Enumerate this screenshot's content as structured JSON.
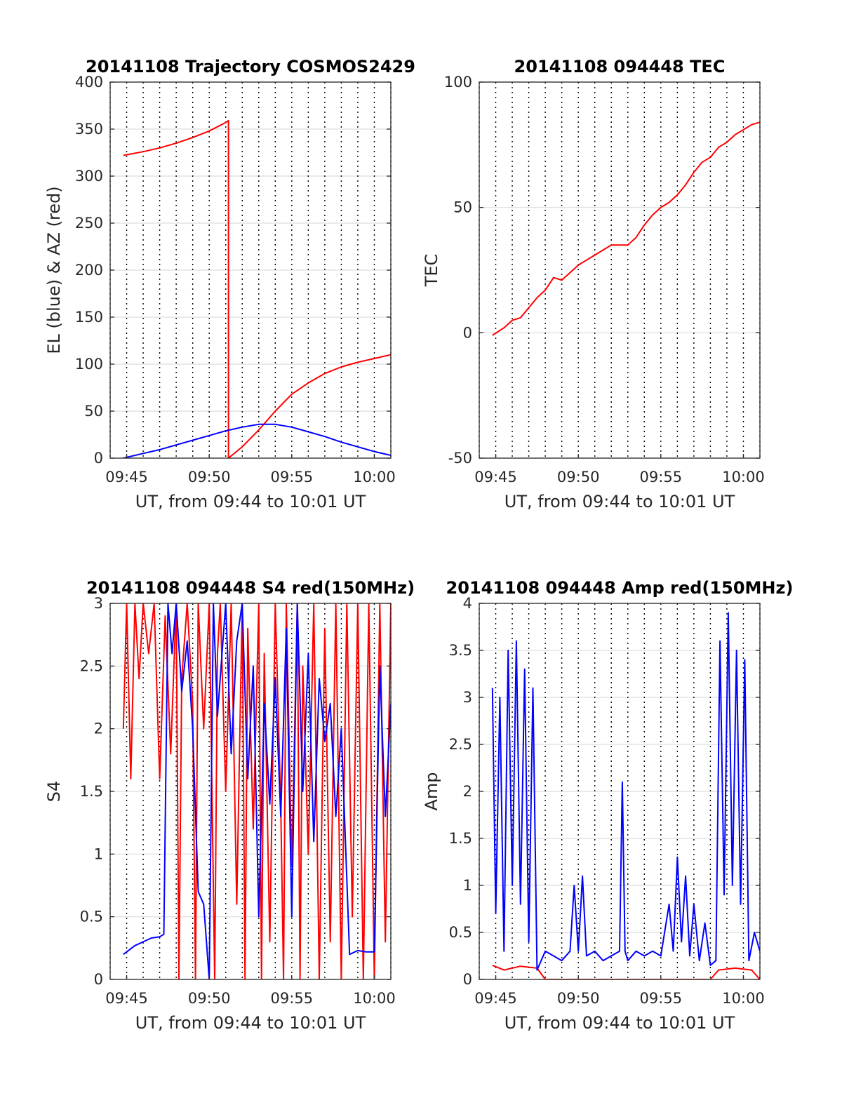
{
  "chart_data": [
    {
      "type": "line",
      "title": "20141108 Trajectory COSMOS2429",
      "xlabel": "UT, from 09:44 to 10:01 UT",
      "ylabel": "EL (blue) & AZ (red)",
      "xlim": [
        "09:44",
        "10:01"
      ],
      "ylim": [
        0,
        400
      ],
      "yticks": [
        0,
        50,
        100,
        150,
        200,
        250,
        300,
        350,
        400
      ],
      "xtick_labels": [
        "09:45",
        "09:50",
        "09:55",
        "10:00"
      ],
      "grid": true,
      "series": [
        {
          "color": "#ff0000",
          "x": [
            "09:44:48",
            "09:46:00",
            "09:47:00",
            "09:48:00",
            "09:49:00",
            "09:50:00",
            "09:51:00",
            "09:51:10",
            "09:51:10",
            "09:52:00",
            "09:53:00",
            "09:54:00",
            "09:55:00",
            "09:56:00",
            "09:57:00",
            "09:58:00",
            "09:59:00",
            "10:00:00",
            "10:01:00"
          ],
          "y": [
            322,
            326,
            330,
            335,
            341,
            348,
            357,
            359,
            0,
            12,
            30,
            50,
            68,
            80,
            90,
            97,
            102,
            106,
            110
          ]
        },
        {
          "color": "#0000ff",
          "x": [
            "09:44:48",
            "09:46:00",
            "09:47:00",
            "09:48:00",
            "09:49:00",
            "09:50:00",
            "09:51:00",
            "09:52:00",
            "09:53:00",
            "09:54:00",
            "09:55:00",
            "09:56:00",
            "09:57:00",
            "09:58:00",
            "09:59:00",
            "10:00:00",
            "10:01:00"
          ],
          "y": [
            0,
            5,
            9,
            14,
            19,
            24,
            29,
            33,
            36,
            36,
            33,
            28,
            23,
            17,
            12,
            7,
            3
          ]
        }
      ]
    },
    {
      "type": "line",
      "title": "20141108 094448 TEC",
      "xlabel": "UT, from 09:44 to 10:01 UT",
      "ylabel": "TEC",
      "xlim": [
        "09:44",
        "10:01"
      ],
      "ylim": [
        -50,
        100
      ],
      "yticks": [
        -50,
        0,
        50,
        100
      ],
      "xtick_labels": [
        "09:45",
        "09:50",
        "09:55",
        "10:00"
      ],
      "grid": true,
      "series": [
        {
          "color": "#ff0000",
          "x": [
            "09:44:48",
            "09:45:30",
            "09:46:00",
            "09:46:30",
            "09:47:00",
            "09:47:30",
            "09:48:00",
            "09:48:30",
            "09:49:00",
            "09:49:30",
            "09:50:00",
            "09:50:30",
            "09:51:00",
            "09:51:30",
            "09:52:00",
            "09:52:30",
            "09:53:00",
            "09:53:30",
            "09:54:00",
            "09:54:30",
            "09:55:00",
            "09:55:30",
            "09:56:00",
            "09:56:30",
            "09:57:00",
            "09:57:30",
            "09:58:00",
            "09:58:30",
            "09:59:00",
            "09:59:30",
            "10:00:00",
            "10:00:30",
            "10:01:00"
          ],
          "y": [
            -1,
            2,
            5,
            6,
            10,
            14,
            17,
            22,
            21,
            24,
            27,
            29,
            31,
            33,
            35,
            35,
            35,
            38,
            43,
            47,
            50,
            52,
            55,
            59,
            64,
            68,
            70,
            74,
            76,
            79,
            81,
            83,
            84
          ]
        }
      ]
    },
    {
      "type": "line",
      "title": "20141108 094448 S4 red(150MHz)",
      "xlabel": "UT, from 09:44 to 10:01 UT",
      "ylabel": "S4",
      "xlim": [
        "09:44",
        "10:01"
      ],
      "ylim": [
        0,
        3
      ],
      "yticks": [
        0,
        0.5,
        1,
        1.5,
        2,
        2.5,
        3
      ],
      "xtick_labels": [
        "09:45",
        "09:50",
        "09:55",
        "10:00"
      ],
      "grid": true,
      "series": [
        {
          "color": "#ff0000",
          "x": [
            "09:44:48",
            "09:45:00",
            "09:45:15",
            "09:45:30",
            "09:45:45",
            "09:46:00",
            "09:46:20",
            "09:46:40",
            "09:47:00",
            "09:47:20",
            "09:47:40",
            "09:48:00",
            "09:48:10",
            "09:48:20",
            "09:48:40",
            "09:49:00",
            "09:49:10",
            "09:49:20",
            "09:49:40",
            "09:50:00",
            "09:50:20",
            "09:50:30",
            "09:50:40",
            "09:51:00",
            "09:51:20",
            "09:51:40",
            "09:52:00",
            "09:52:10",
            "09:52:20",
            "09:52:40",
            "09:53:00",
            "09:53:10",
            "09:53:20",
            "09:53:40",
            "09:54:00",
            "09:54:20",
            "09:54:30",
            "09:54:40",
            "09:55:00",
            "09:55:20",
            "09:55:30",
            "09:55:40",
            "09:56:00",
            "09:56:20",
            "09:56:40",
            "09:57:00",
            "09:57:20",
            "09:57:40",
            "09:58:00",
            "09:58:20",
            "09:58:40",
            "09:59:00",
            "09:59:20",
            "09:59:40",
            "10:00:00",
            "10:00:20",
            "10:00:40",
            "10:01:00"
          ],
          "y": [
            2.0,
            3.0,
            1.6,
            3.0,
            2.4,
            3.0,
            2.6,
            3.0,
            1.6,
            2.9,
            1.8,
            3.0,
            0.0,
            2.4,
            3.0,
            2.2,
            0.0,
            3.0,
            2.0,
            3.0,
            0.0,
            2.6,
            3.0,
            1.5,
            3.0,
            0.6,
            3.0,
            0.0,
            2.8,
            1.2,
            3.0,
            0.0,
            2.6,
            0.3,
            3.0,
            1.4,
            0.0,
            3.0,
            0.9,
            3.0,
            0.0,
            2.5,
            1.0,
            3.0,
            0.0,
            2.8,
            0.3,
            3.0,
            0.0,
            3.0,
            0.5,
            3.0,
            0.0,
            3.0,
            0.0,
            3.0,
            0.3,
            3.0
          ]
        },
        {
          "color": "#0000ff",
          "x": [
            "09:44:48",
            "09:45:30",
            "09:46:00",
            "09:46:30",
            "09:47:00",
            "09:47:15",
            "09:47:30",
            "09:47:45",
            "09:48:00",
            "09:48:20",
            "09:48:40",
            "09:49:00",
            "09:49:20",
            "09:49:40",
            "09:50:00",
            "09:50:15",
            "09:50:30",
            "09:51:00",
            "09:51:20",
            "09:51:40",
            "09:52:00",
            "09:52:20",
            "09:52:40",
            "09:53:00",
            "09:53:20",
            "09:53:40",
            "09:54:00",
            "09:54:20",
            "09:54:40",
            "09:55:00",
            "09:55:20",
            "09:55:40",
            "09:56:00",
            "09:56:20",
            "09:56:40",
            "09:57:00",
            "09:57:20",
            "09:57:40",
            "09:58:00",
            "09:58:30",
            "09:59:00",
            "09:59:30",
            "10:00:00",
            "10:00:20",
            "10:00:40",
            "10:01:00"
          ],
          "y": [
            0.2,
            0.27,
            0.3,
            0.33,
            0.34,
            0.36,
            3.0,
            2.6,
            3.0,
            2.3,
            2.7,
            2.0,
            0.7,
            0.6,
            0.0,
            3.0,
            2.1,
            3.0,
            1.8,
            2.7,
            3.0,
            1.6,
            2.5,
            0.5,
            2.2,
            1.4,
            2.4,
            1.3,
            2.8,
            0.5,
            3.0,
            1.5,
            2.6,
            1.1,
            2.4,
            1.9,
            2.2,
            1.3,
            2.0,
            0.2,
            0.23,
            0.22,
            0.22,
            2.5,
            1.3,
            2.2
          ]
        }
      ]
    },
    {
      "type": "line",
      "title": "20141108 094448 Amp red(150MHz)",
      "xlabel": "UT, from 09:44 to 10:01 UT",
      "ylabel": "Amp",
      "xlim": [
        "09:44",
        "10:01"
      ],
      "ylim": [
        0,
        4
      ],
      "yticks": [
        0,
        0.5,
        1,
        1.5,
        2,
        2.5,
        3,
        3.5,
        4
      ],
      "xtick_labels": [
        "09:45",
        "09:50",
        "09:55",
        "10:00"
      ],
      "grid": true,
      "series": [
        {
          "color": "#ff0000",
          "x": [
            "09:44:48",
            "09:45:30",
            "09:46:30",
            "09:47:30",
            "09:48:00",
            "09:50:00",
            "09:52:00",
            "09:54:00",
            "09:56:00",
            "09:58:00",
            "09:58:30",
            "09:59:30",
            "10:00:30",
            "10:01:00"
          ],
          "y": [
            0.15,
            0.1,
            0.14,
            0.12,
            0.0,
            0.0,
            0.0,
            0.0,
            0.0,
            0.0,
            0.1,
            0.12,
            0.1,
            0.0
          ]
        },
        {
          "color": "#0000ff",
          "x": [
            "09:44:48",
            "09:45:00",
            "09:45:15",
            "09:45:30",
            "09:45:45",
            "09:46:00",
            "09:46:15",
            "09:46:30",
            "09:46:45",
            "09:47:00",
            "09:47:15",
            "09:47:30",
            "09:48:00",
            "09:48:30",
            "09:49:00",
            "09:49:30",
            "09:49:45",
            "09:50:00",
            "09:50:15",
            "09:50:30",
            "09:51:00",
            "09:51:30",
            "09:52:00",
            "09:52:30",
            "09:52:40",
            "09:52:50",
            "09:53:00",
            "09:53:30",
            "09:54:00",
            "09:54:30",
            "09:55:00",
            "09:55:30",
            "09:55:45",
            "09:56:00",
            "09:56:15",
            "09:56:30",
            "09:56:45",
            "09:57:00",
            "09:57:20",
            "09:57:40",
            "09:58:00",
            "09:58:20",
            "09:58:35",
            "09:58:50",
            "09:59:05",
            "09:59:20",
            "09:59:35",
            "09:59:50",
            "10:00:05",
            "10:00:20",
            "10:00:40",
            "10:01:00"
          ],
          "y": [
            3.1,
            0.7,
            3.0,
            0.3,
            3.5,
            1.0,
            3.6,
            0.8,
            3.3,
            0.4,
            3.1,
            0.1,
            0.3,
            0.25,
            0.2,
            0.3,
            1.0,
            0.3,
            1.1,
            0.25,
            0.3,
            0.2,
            0.25,
            0.3,
            2.1,
            0.3,
            0.2,
            0.3,
            0.25,
            0.3,
            0.25,
            0.8,
            0.3,
            1.3,
            0.4,
            1.1,
            0.25,
            0.8,
            0.2,
            0.6,
            0.15,
            0.2,
            3.6,
            0.9,
            3.9,
            1.0,
            3.5,
            0.8,
            3.4,
            0.2,
            0.5,
            0.3
          ]
        }
      ]
    }
  ]
}
